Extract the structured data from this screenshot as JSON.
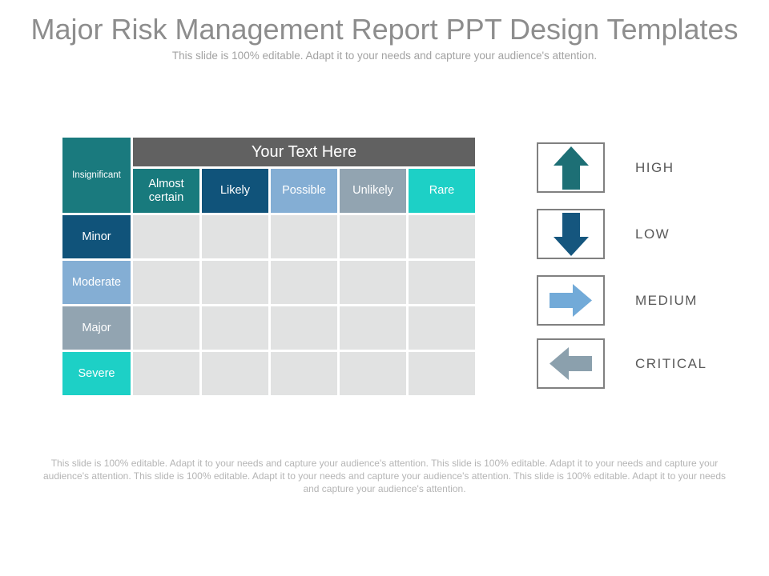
{
  "slide": {
    "title": "Major Risk Management Report PPT Design Templates",
    "subtitle": "This slide is 100% editable. Adapt it to your needs and capture your audience's attention.",
    "footer": "This slide is 100% editable. Adapt it to your needs and capture your audience's attention. This slide is 100% editable. Adapt it to your needs and capture your audience's attention. This slide is 100% editable. Adapt it to your needs and capture your audience's attention. This slide is 100% editable. Adapt it to your needs and capture your audience's attention.",
    "title_color": "#8d8d8d",
    "subtitle_color": "#a2a2a2",
    "footer_color": "#b5b5b5"
  },
  "matrix": {
    "corner_label": "Insignificant",
    "corner_color": "#1a7a7e",
    "banner_label": "Your Text Here",
    "banner_color": "#616161",
    "column_headers": [
      {
        "label": "Almost certain",
        "color": "#187a7d"
      },
      {
        "label": "Likely",
        "color": "#10537a"
      },
      {
        "label": "Possible",
        "color": "#84aed4"
      },
      {
        "label": "Unlikely",
        "color": "#92a4b1"
      },
      {
        "label": "Rare",
        "color": "#1dd0c6"
      }
    ],
    "row_headers": [
      {
        "label": "Minor",
        "color": "#10537a"
      },
      {
        "label": "Moderate",
        "color": "#84aed4"
      },
      {
        "label": "Major",
        "color": "#92a4b1"
      },
      {
        "label": "Severe",
        "color": "#1dd0c6"
      }
    ],
    "empty_rows": 4,
    "empty_cols": 5,
    "cell_color": "#e1e2e2"
  },
  "legend": {
    "items": [
      {
        "label": "HIGH",
        "icon": "arrow-up-icon",
        "color": "#1d6f75"
      },
      {
        "label": "LOW",
        "icon": "arrow-down-icon",
        "color": "#15567e"
      },
      {
        "label": "MEDIUM",
        "icon": "arrow-right-icon",
        "color": "#72aad8"
      },
      {
        "label": "CRITICAL",
        "icon": "arrow-left-icon",
        "color": "#8ba0ad"
      }
    ],
    "box_border_color": "#808080",
    "label_color": "#595959"
  }
}
